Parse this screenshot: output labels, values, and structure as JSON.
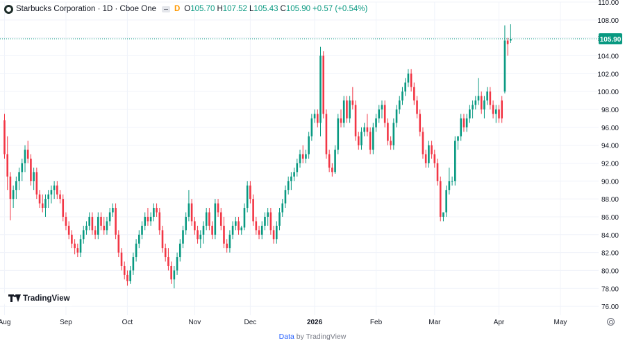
{
  "legend": {
    "title": "Starbucks Corporation · 1D · Cboe One",
    "interval_badge": "D",
    "open_label": "O",
    "open_value": "105.70",
    "high_label": "H",
    "high_value": "107.52",
    "low_label": "L",
    "low_value": "105.43",
    "close_label": "C",
    "close_value": "105.90",
    "change_value": "+0.57 (+0.54%)"
  },
  "watermark": "TradingView",
  "footer": {
    "data_link": "Data",
    "suffix": "by TradingView"
  },
  "colors": {
    "up": "#089981",
    "down": "#f23645",
    "grid": "#f0f3fa",
    "price_line": "#089981"
  },
  "icons": [
    "tradingview-logo-icon",
    "eye-icon",
    "settings-icon",
    "starbucks-logo-icon"
  ],
  "chart_data": {
    "type": "candlestick",
    "ylim": [
      75,
      110
    ],
    "y_ticks": [
      "76.00",
      "78.00",
      "80.00",
      "82.00",
      "84.00",
      "86.00",
      "88.00",
      "90.00",
      "92.00",
      "94.00",
      "96.00",
      "98.00",
      "100.00",
      "102.00",
      "104.00",
      "106.00",
      "108.00",
      "110.00"
    ],
    "x_labels": [
      {
        "label": "Aug",
        "index": 0
      },
      {
        "label": "Sep",
        "index": 21
      },
      {
        "label": "Oct",
        "index": 42
      },
      {
        "label": "Nov",
        "index": 65
      },
      {
        "label": "Dec",
        "index": 84
      },
      {
        "label": "2026",
        "index": 106
      },
      {
        "label": "Feb",
        "index": 127
      },
      {
        "label": "Mar",
        "index": 147
      },
      {
        "label": "Apr",
        "index": 169
      },
      {
        "label": "May",
        "index": 190
      }
    ],
    "last_price": "105.90",
    "candles": [
      [
        96.8,
        97.5,
        92.5,
        93.0
      ],
      [
        93.0,
        95.0,
        89.0,
        90.5
      ],
      [
        90.5,
        91.0,
        85.6,
        88.0
      ],
      [
        88.0,
        89.5,
        87.0,
        89.0
      ],
      [
        89.0,
        90.5,
        88.0,
        90.0
      ],
      [
        90.0,
        91.5,
        89.0,
        91.0
      ],
      [
        91.0,
        92.5,
        90.0,
        92.0
      ],
      [
        92.0,
        94.0,
        91.0,
        93.5
      ],
      [
        93.5,
        94.5,
        92.0,
        92.5
      ],
      [
        92.5,
        93.0,
        89.5,
        90.0
      ],
      [
        90.0,
        91.5,
        89.0,
        91.0
      ],
      [
        91.0,
        91.5,
        88.0,
        88.5
      ],
      [
        88.5,
        89.0,
        87.0,
        87.5
      ],
      [
        87.5,
        88.5,
        86.5,
        87.0
      ],
      [
        87.0,
        88.5,
        86.0,
        88.0
      ],
      [
        88.0,
        89.0,
        87.0,
        88.5
      ],
      [
        88.5,
        89.5,
        87.5,
        89.0
      ],
      [
        89.0,
        90.0,
        88.0,
        89.5
      ],
      [
        89.5,
        90.0,
        88.0,
        88.5
      ],
      [
        88.5,
        89.0,
        87.5,
        88.0
      ],
      [
        88.0,
        88.5,
        85.5,
        86.0
      ],
      [
        86.0,
        86.5,
        84.5,
        85.0
      ],
      [
        85.0,
        85.5,
        83.5,
        84.0
      ],
      [
        84.0,
        84.5,
        82.5,
        83.0
      ],
      [
        83.0,
        83.5,
        81.8,
        82.5
      ],
      [
        82.5,
        83.0,
        81.5,
        82.0
      ],
      [
        82.0,
        84.0,
        81.5,
        83.5
      ],
      [
        83.5,
        85.0,
        83.0,
        84.5
      ],
      [
        84.5,
        85.5,
        84.0,
        85.0
      ],
      [
        85.0,
        86.5,
        84.5,
        86.0
      ],
      [
        86.0,
        86.5,
        84.0,
        84.5
      ],
      [
        84.5,
        85.0,
        83.5,
        84.0
      ],
      [
        84.0,
        86.5,
        83.5,
        86.0
      ],
      [
        86.0,
        86.5,
        84.5,
        85.0
      ],
      [
        85.0,
        86.0,
        84.0,
        84.5
      ],
      [
        84.5,
        86.0,
        84.0,
        85.5
      ],
      [
        85.5,
        87.0,
        85.0,
        86.5
      ],
      [
        86.5,
        87.5,
        86.0,
        87.0
      ],
      [
        87.0,
        87.5,
        83.5,
        84.0
      ],
      [
        84.0,
        84.5,
        81.5,
        82.0
      ],
      [
        82.0,
        82.5,
        80.0,
        80.5
      ],
      [
        80.5,
        81.0,
        79.0,
        79.5
      ],
      [
        79.5,
        80.0,
        78.3,
        78.8
      ],
      [
        78.8,
        80.5,
        78.5,
        80.0
      ],
      [
        80.0,
        82.0,
        79.5,
        81.5
      ],
      [
        81.5,
        83.5,
        81.0,
        83.0
      ],
      [
        83.0,
        84.5,
        82.5,
        84.0
      ],
      [
        84.0,
        85.5,
        83.5,
        85.0
      ],
      [
        85.0,
        86.5,
        84.5,
        86.0
      ],
      [
        86.0,
        87.0,
        85.0,
        85.5
      ],
      [
        85.5,
        86.5,
        85.0,
        86.0
      ],
      [
        86.0,
        87.5,
        85.5,
        87.0
      ],
      [
        87.0,
        87.5,
        86.0,
        86.5
      ],
      [
        86.5,
        87.0,
        84.0,
        84.5
      ],
      [
        84.5,
        85.0,
        82.0,
        82.5
      ],
      [
        82.5,
        83.0,
        81.0,
        81.5
      ],
      [
        81.5,
        82.5,
        80.0,
        80.5
      ],
      [
        80.5,
        81.0,
        78.5,
        79.0
      ],
      [
        79.0,
        80.5,
        78.0,
        80.0
      ],
      [
        80.0,
        82.0,
        79.5,
        81.5
      ],
      [
        81.5,
        83.5,
        81.0,
        83.0
      ],
      [
        83.0,
        85.0,
        82.5,
        84.5
      ],
      [
        84.5,
        86.5,
        84.0,
        86.0
      ],
      [
        86.0,
        89.0,
        85.5,
        87.5
      ],
      [
        87.5,
        88.0,
        85.0,
        85.5
      ],
      [
        85.5,
        86.0,
        84.0,
        84.5
      ],
      [
        84.5,
        85.0,
        83.0,
        83.5
      ],
      [
        83.5,
        84.5,
        82.5,
        84.0
      ],
      [
        84.0,
        85.5,
        83.0,
        85.0
      ],
      [
        85.0,
        87.0,
        84.5,
        86.5
      ],
      [
        86.5,
        87.0,
        84.5,
        85.0
      ],
      [
        85.0,
        85.5,
        83.5,
        84.0
      ],
      [
        84.0,
        88.0,
        83.5,
        87.5
      ],
      [
        87.5,
        88.0,
        86.0,
        86.5
      ],
      [
        86.5,
        87.0,
        84.5,
        85.0
      ],
      [
        85.0,
        86.0,
        82.5,
        83.0
      ],
      [
        83.0,
        83.5,
        82.0,
        82.5
      ],
      [
        82.5,
        84.5,
        82.0,
        84.0
      ],
      [
        84.0,
        85.5,
        83.5,
        85.0
      ],
      [
        85.0,
        86.0,
        84.5,
        85.5
      ],
      [
        85.5,
        86.0,
        84.0,
        84.5
      ],
      [
        84.5,
        85.0,
        84.0,
        84.8
      ],
      [
        84.8,
        87.5,
        84.5,
        87.0
      ],
      [
        87.0,
        90.0,
        86.5,
        89.5
      ],
      [
        89.5,
        90.0,
        87.5,
        88.0
      ],
      [
        88.0,
        88.5,
        85.0,
        85.5
      ],
      [
        85.5,
        86.0,
        84.0,
        84.5
      ],
      [
        84.5,
        85.0,
        83.5,
        84.0
      ],
      [
        84.0,
        85.5,
        83.5,
        85.0
      ],
      [
        85.0,
        86.5,
        84.5,
        86.0
      ],
      [
        86.0,
        87.0,
        85.0,
        86.5
      ],
      [
        86.5,
        87.0,
        84.0,
        84.5
      ],
      [
        84.5,
        85.0,
        83.0,
        83.5
      ],
      [
        83.5,
        85.5,
        83.0,
        85.0
      ],
      [
        85.0,
        87.0,
        84.5,
        86.5
      ],
      [
        86.5,
        88.0,
        86.0,
        87.5
      ],
      [
        87.5,
        89.5,
        87.0,
        89.0
      ],
      [
        89.0,
        90.5,
        88.5,
        90.0
      ],
      [
        90.0,
        91.0,
        89.0,
        90.5
      ],
      [
        90.5,
        91.5,
        90.0,
        91.0
      ],
      [
        91.0,
        92.5,
        90.5,
        92.0
      ],
      [
        92.0,
        93.5,
        91.5,
        93.0
      ],
      [
        93.0,
        94.0,
        92.0,
        92.5
      ],
      [
        92.5,
        93.5,
        92.0,
        93.0
      ],
      [
        93.0,
        95.5,
        92.5,
        95.0
      ],
      [
        95.0,
        97.5,
        94.5,
        97.0
      ],
      [
        97.0,
        98.0,
        96.5,
        97.5
      ],
      [
        97.5,
        98.0,
        96.0,
        96.5
      ],
      [
        96.5,
        105.0,
        95.0,
        104.0
      ],
      [
        104.0,
        104.5,
        97.0,
        97.5
      ],
      [
        97.5,
        98.0,
        92.5,
        93.0
      ],
      [
        93.0,
        93.5,
        91.0,
        91.5
      ],
      [
        91.5,
        92.0,
        90.5,
        91.0
      ],
      [
        91.0,
        94.0,
        90.8,
        93.5
      ],
      [
        93.5,
        97.5,
        93.0,
        97.0
      ],
      [
        97.0,
        98.0,
        96.0,
        96.5
      ],
      [
        96.5,
        99.5,
        96.0,
        99.0
      ],
      [
        99.0,
        99.5,
        96.5,
        97.0
      ],
      [
        97.0,
        99.5,
        96.5,
        99.0
      ],
      [
        99.0,
        100.5,
        98.0,
        98.5
      ],
      [
        98.5,
        99.0,
        94.5,
        95.0
      ],
      [
        95.0,
        95.5,
        93.5,
        94.0
      ],
      [
        94.0,
        96.0,
        93.5,
        95.5
      ],
      [
        95.5,
        96.5,
        95.0,
        96.0
      ],
      [
        96.0,
        97.5,
        95.0,
        95.5
      ],
      [
        95.5,
        96.0,
        93.0,
        93.5
      ],
      [
        93.5,
        96.5,
        93.0,
        96.0
      ],
      [
        96.0,
        97.5,
        95.5,
        97.0
      ],
      [
        97.0,
        98.5,
        96.5,
        98.0
      ],
      [
        98.0,
        99.0,
        97.0,
        98.5
      ],
      [
        98.5,
        99.0,
        96.0,
        96.5
      ],
      [
        96.5,
        97.0,
        94.0,
        94.5
      ],
      [
        94.5,
        95.0,
        93.5,
        94.0
      ],
      [
        94.0,
        97.0,
        93.5,
        96.5
      ],
      [
        96.5,
        98.5,
        96.0,
        98.0
      ],
      [
        98.0,
        99.5,
        97.5,
        99.0
      ],
      [
        99.0,
        100.5,
        98.5,
        100.0
      ],
      [
        100.0,
        101.5,
        99.5,
        101.0
      ],
      [
        101.0,
        102.5,
        100.5,
        102.0
      ],
      [
        102.0,
        102.5,
        100.0,
        100.5
      ],
      [
        100.5,
        101.0,
        98.5,
        99.0
      ],
      [
        99.0,
        99.5,
        97.0,
        97.5
      ],
      [
        97.5,
        98.0,
        95.0,
        95.5
      ],
      [
        95.5,
        96.0,
        92.5,
        93.0
      ],
      [
        93.0,
        93.5,
        91.5,
        92.0
      ],
      [
        92.0,
        94.5,
        91.5,
        94.0
      ],
      [
        94.0,
        94.5,
        92.5,
        93.0
      ],
      [
        93.0,
        93.5,
        91.5,
        92.0
      ],
      [
        92.0,
        92.5,
        89.5,
        90.0
      ],
      [
        90.0,
        90.5,
        85.5,
        86.0
      ],
      [
        86.0,
        86.5,
        85.5,
        86.5
      ],
      [
        86.5,
        89.5,
        86.0,
        89.0
      ],
      [
        89.0,
        91.5,
        88.5,
        90.0
      ],
      [
        90.0,
        90.5,
        89.5,
        90.0
      ],
      [
        90.0,
        95.0,
        89.5,
        94.5
      ],
      [
        94.5,
        95.0,
        93.5,
        95.0
      ],
      [
        95.0,
        97.5,
        94.5,
        97.0
      ],
      [
        97.0,
        97.5,
        95.5,
        96.0
      ],
      [
        96.0,
        97.5,
        95.5,
        97.0
      ],
      [
        97.0,
        98.5,
        96.5,
        98.0
      ],
      [
        98.0,
        99.0,
        97.0,
        98.5
      ],
      [
        98.5,
        99.5,
        98.0,
        99.0
      ],
      [
        99.0,
        101.5,
        98.5,
        99.5
      ],
      [
        99.5,
        100.0,
        97.5,
        98.0
      ],
      [
        98.0,
        99.5,
        97.0,
        99.0
      ],
      [
        99.0,
        100.5,
        98.5,
        100.0
      ],
      [
        100.0,
        100.5,
        98.0,
        98.5
      ],
      [
        98.5,
        99.0,
        97.0,
        97.5
      ],
      [
        97.5,
        98.5,
        96.5,
        98.0
      ],
      [
        98.0,
        98.5,
        96.5,
        97.0
      ],
      [
        99.0,
        99.5,
        96.5,
        97.0
      ],
      [
        100.0,
        107.4,
        99.8,
        105.7
      ],
      [
        105.7,
        106.0,
        104.0,
        105.3
      ],
      [
        105.7,
        107.52,
        105.43,
        105.9
      ]
    ]
  }
}
